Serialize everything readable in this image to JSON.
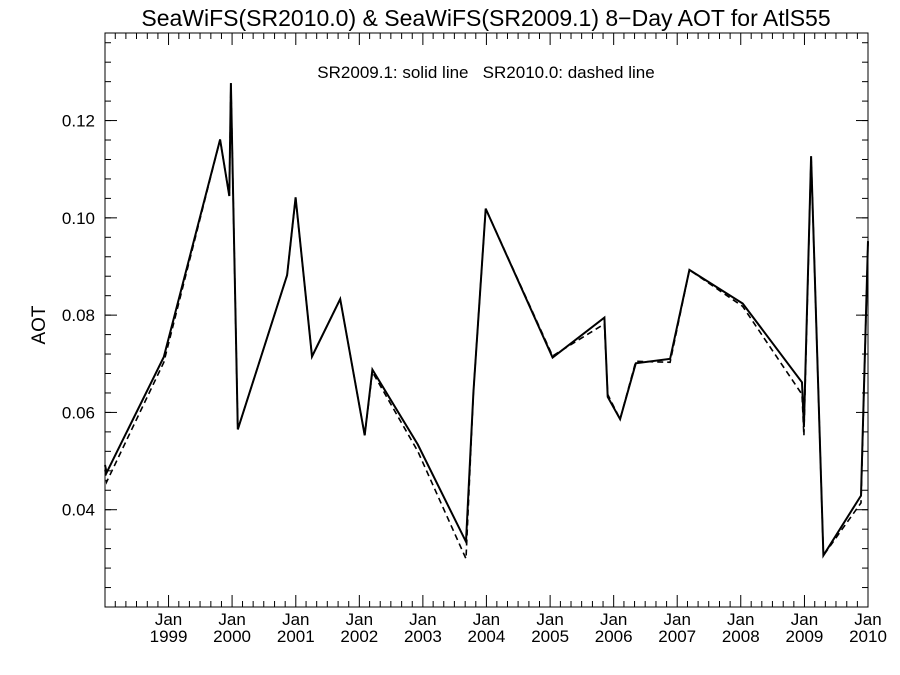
{
  "chart_data": {
    "type": "line",
    "title": "SeaWiFS(SR2010.0) & SeaWiFS(SR2009.1) 8−Day AOT for AtlS55",
    "annotation": "SR2009.1: solid line   SR2010.0: dashed line",
    "xlabel": "",
    "ylabel": "AOT",
    "xlim": [
      "1998-01-01",
      "2010-01-01"
    ],
    "ylim": [
      0.02,
      0.138
    ],
    "y_ticks": [
      "0.04",
      "0.06",
      "0.08",
      "0.10",
      "0.12"
    ],
    "x_ticks": [
      {
        "date": "1999-01-01",
        "month": "Jan",
        "year": "1999"
      },
      {
        "date": "2000-01-01",
        "month": "Jan",
        "year": "2000"
      },
      {
        "date": "2001-01-01",
        "month": "Jan",
        "year": "2001"
      },
      {
        "date": "2002-01-01",
        "month": "Jan",
        "year": "2002"
      },
      {
        "date": "2003-01-01",
        "month": "Jan",
        "year": "2003"
      },
      {
        "date": "2004-01-01",
        "month": "Jan",
        "year": "2004"
      },
      {
        "date": "2005-01-01",
        "month": "Jan",
        "year": "2005"
      },
      {
        "date": "2006-01-01",
        "month": "Jan",
        "year": "2006"
      },
      {
        "date": "2007-01-01",
        "month": "Jan",
        "year": "2007"
      },
      {
        "date": "2008-01-01",
        "month": "Jan",
        "year": "2008"
      },
      {
        "date": "2009-01-01",
        "month": "Jan",
        "year": "2009"
      },
      {
        "date": "2010-01-01",
        "month": "Jan",
        "year": "2010"
      }
    ],
    "grid": false,
    "series": [
      {
        "name": "SR2009.1",
        "style": "solid",
        "color": "#000000",
        "points": [
          [
            "1998-01-01",
            0.0492
          ],
          [
            "1998-01-10",
            0.0476
          ],
          [
            "1998-12-05",
            0.0714
          ],
          [
            "1999-10-24",
            0.1161
          ],
          [
            "1999-12-16",
            0.1045
          ],
          [
            "1999-12-25",
            0.1277
          ],
          [
            "2000-02-03",
            0.0565
          ],
          [
            "2000-11-12",
            0.0882
          ],
          [
            "2000-12-31",
            0.1042
          ],
          [
            "2001-04-04",
            0.0715
          ],
          [
            "2001-09-13",
            0.0833
          ],
          [
            "2002-02-01",
            0.0553
          ],
          [
            "2002-03-17",
            0.0688
          ],
          [
            "2002-12-03",
            0.0534
          ],
          [
            "2003-09-06",
            0.0334
          ],
          [
            "2003-10-18",
            0.0641
          ],
          [
            "2003-12-28",
            0.1019
          ],
          [
            "2005-01-15",
            0.0713
          ],
          [
            "2005-11-09",
            0.0795
          ],
          [
            "2005-11-28",
            0.0632
          ],
          [
            "2006-02-07",
            0.0586
          ],
          [
            "2006-05-08",
            0.0701
          ],
          [
            "2006-11-21",
            0.071
          ],
          [
            "2007-03-12",
            0.0893
          ],
          [
            "2008-01-12",
            0.0824
          ],
          [
            "2008-12-18",
            0.0662
          ],
          [
            "2008-12-29",
            0.057
          ],
          [
            "2009-02-08",
            0.1127
          ],
          [
            "2009-04-20",
            0.0306
          ],
          [
            "2009-11-22",
            0.0429
          ],
          [
            "2010-01-01",
            0.0952
          ]
        ]
      },
      {
        "name": "SR2010.0",
        "style": "dashed",
        "color": "#000000",
        "points": [
          [
            "1998-01-01",
            0.0482
          ],
          [
            "1998-01-10",
            0.0457
          ],
          [
            "1998-12-05",
            0.0703
          ],
          [
            "1999-10-24",
            0.1161
          ],
          [
            "1999-12-16",
            0.1045
          ],
          [
            "1999-12-25",
            0.1277
          ],
          [
            "2000-02-03",
            0.0565
          ],
          [
            "2000-11-12",
            0.0882
          ],
          [
            "2000-12-31",
            0.1042
          ],
          [
            "2001-04-04",
            0.0715
          ],
          [
            "2001-09-13",
            0.0833
          ],
          [
            "2002-02-01",
            0.0553
          ],
          [
            "2002-03-17",
            0.0683
          ],
          [
            "2002-12-03",
            0.052
          ],
          [
            "2003-09-06",
            0.0299
          ],
          [
            "2003-10-18",
            0.0641
          ],
          [
            "2003-12-28",
            0.1019
          ],
          [
            "2005-01-15",
            0.0716
          ],
          [
            "2005-11-09",
            0.0782
          ],
          [
            "2005-11-28",
            0.0637
          ],
          [
            "2006-02-07",
            0.0586
          ],
          [
            "2006-05-08",
            0.0705
          ],
          [
            "2006-11-21",
            0.0703
          ],
          [
            "2007-03-12",
            0.0893
          ],
          [
            "2008-01-12",
            0.0818
          ],
          [
            "2008-12-18",
            0.0637
          ],
          [
            "2008-12-29",
            0.0552
          ],
          [
            "2009-02-08",
            0.1127
          ],
          [
            "2009-04-20",
            0.0306
          ],
          [
            "2009-11-22",
            0.0414
          ],
          [
            "2010-01-01",
            0.0952
          ]
        ]
      }
    ]
  }
}
